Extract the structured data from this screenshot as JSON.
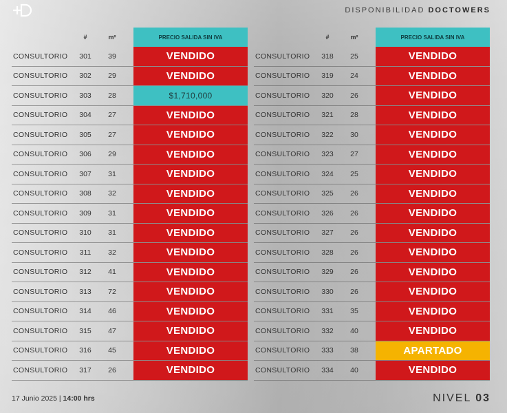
{
  "header": {
    "logo_icon": "doctowers-logo-icon",
    "title_prefix": "DISPONIBILIDAD",
    "title_brand": "DOCTOWERS"
  },
  "columns": {
    "num": "#",
    "m2": "m²",
    "price": "PRECIO SALIDA SIN IVA"
  },
  "colors": {
    "vendido": "#d0181b",
    "precio": "#3ec0c2",
    "apartado": "#f5b301"
  },
  "left_rows": [
    {
      "name": "CONSULTORIO",
      "num": "301",
      "m2": "39",
      "status": "VENDIDO",
      "kind": "vendido"
    },
    {
      "name": "CONSULTORIO",
      "num": "302",
      "m2": "29",
      "status": "VENDIDO",
      "kind": "vendido"
    },
    {
      "name": "CONSULTORIO",
      "num": "303",
      "m2": "28",
      "status": "$1,710,000",
      "kind": "precio"
    },
    {
      "name": "CONSULTORIO",
      "num": "304",
      "m2": "27",
      "status": "VENDIDO",
      "kind": "vendido"
    },
    {
      "name": "CONSULTORIO",
      "num": "305",
      "m2": "27",
      "status": "VENDIDO",
      "kind": "vendido"
    },
    {
      "name": "CONSULTORIO",
      "num": "306",
      "m2": "29",
      "status": "VENDIDO",
      "kind": "vendido"
    },
    {
      "name": "CONSULTORIO",
      "num": "307",
      "m2": "31",
      "status": "VENDIDO",
      "kind": "vendido"
    },
    {
      "name": "CONSULTORIO",
      "num": "308",
      "m2": "32",
      "status": "VENDIDO",
      "kind": "vendido"
    },
    {
      "name": "CONSULTORIO",
      "num": "309",
      "m2": "31",
      "status": "VENDIDO",
      "kind": "vendido"
    },
    {
      "name": "CONSULTORIO",
      "num": "310",
      "m2": "31",
      "status": "VENDIDO",
      "kind": "vendido"
    },
    {
      "name": "CONSULTORIO",
      "num": "311",
      "m2": "32",
      "status": "VENDIDO",
      "kind": "vendido"
    },
    {
      "name": "CONSULTORIO",
      "num": "312",
      "m2": "41",
      "status": "VENDIDO",
      "kind": "vendido"
    },
    {
      "name": "CONSULTORIO",
      "num": "313",
      "m2": "72",
      "status": "VENDIDO",
      "kind": "vendido"
    },
    {
      "name": "CONSULTORIO",
      "num": "314",
      "m2": "46",
      "status": "VENDIDO",
      "kind": "vendido"
    },
    {
      "name": "CONSULTORIO",
      "num": "315",
      "m2": "47",
      "status": "VENDIDO",
      "kind": "vendido"
    },
    {
      "name": "CONSULTORIO",
      "num": "316",
      "m2": "45",
      "status": "VENDIDO",
      "kind": "vendido"
    },
    {
      "name": "CONSULTORIO",
      "num": "317",
      "m2": "26",
      "status": "VENDIDO",
      "kind": "vendido"
    }
  ],
  "right_rows": [
    {
      "name": "CONSULTORIO",
      "num": "318",
      "m2": "25",
      "status": "VENDIDO",
      "kind": "vendido"
    },
    {
      "name": "CONSULTORIO",
      "num": "319",
      "m2": "24",
      "status": "VENDIDO",
      "kind": "vendido"
    },
    {
      "name": "CONSULTORIO",
      "num": "320",
      "m2": "26",
      "status": "VENDIDO",
      "kind": "vendido"
    },
    {
      "name": "CONSULTORIO",
      "num": "321",
      "m2": "28",
      "status": "VENDIDO",
      "kind": "vendido"
    },
    {
      "name": "CONSULTORIO",
      "num": "322",
      "m2": "30",
      "status": "VENDIDO",
      "kind": "vendido"
    },
    {
      "name": "CONSULTORIO",
      "num": "323",
      "m2": "27",
      "status": "VENDIDO",
      "kind": "vendido"
    },
    {
      "name": "CONSULTORIO",
      "num": "324",
      "m2": "25",
      "status": "VENDIDO",
      "kind": "vendido"
    },
    {
      "name": "CONSULTORIO",
      "num": "325",
      "m2": "26",
      "status": "VENDIDO",
      "kind": "vendido"
    },
    {
      "name": "CONSULTORIO",
      "num": "326",
      "m2": "26",
      "status": "VENDIDO",
      "kind": "vendido"
    },
    {
      "name": "CONSULTORIO",
      "num": "327",
      "m2": "26",
      "status": "VENDIDO",
      "kind": "vendido"
    },
    {
      "name": "CONSULTORIO",
      "num": "328",
      "m2": "26",
      "status": "VENDIDO",
      "kind": "vendido"
    },
    {
      "name": "CONSULTORIO",
      "num": "329",
      "m2": "26",
      "status": "VENDIDO",
      "kind": "vendido"
    },
    {
      "name": "CONSULTORIO",
      "num": "330",
      "m2": "26",
      "status": "VENDIDO",
      "kind": "vendido"
    },
    {
      "name": "CONSULTORIO",
      "num": "331",
      "m2": "35",
      "status": "VENDIDO",
      "kind": "vendido"
    },
    {
      "name": "CONSULTORIO",
      "num": "332",
      "m2": "40",
      "status": "VENDIDO",
      "kind": "vendido"
    },
    {
      "name": "CONSULTORIO",
      "num": "333",
      "m2": "38",
      "status": "APARTADO",
      "kind": "apartado"
    },
    {
      "name": "CONSULTORIO",
      "num": "334",
      "m2": "40",
      "status": "VENDIDO",
      "kind": "vendido"
    }
  ],
  "footer": {
    "date": "17 Junio 2025 |",
    "time": "14:00 hrs",
    "level_label": "NIVEL",
    "level_number": "03"
  }
}
